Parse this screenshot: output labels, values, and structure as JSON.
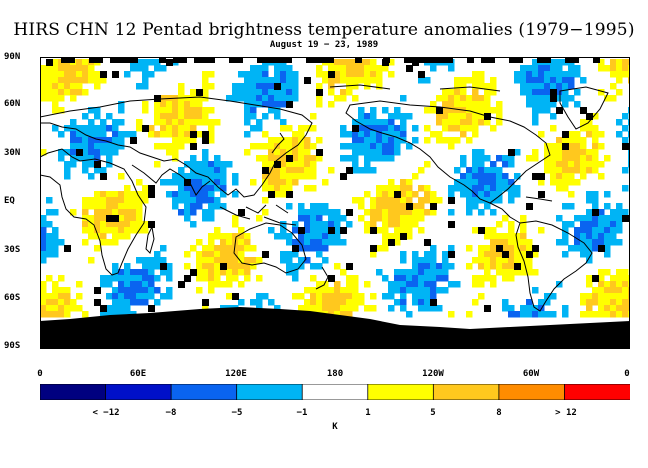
{
  "title": "HIRS CHN 12 Pentad brightness temperature anomalies (1979−1995)",
  "subtitle": "August 19 − 23, 1989",
  "y_axis": {
    "ticks": [
      "90N",
      "60N",
      "30N",
      "EQ",
      "30S",
      "60S",
      "90S"
    ],
    "values": [
      90,
      60,
      30,
      0,
      -30,
      -60,
      -90
    ]
  },
  "x_axis": {
    "ticks": [
      "0",
      "60E",
      "120E",
      "180",
      "120W",
      "60W",
      "0"
    ],
    "values": [
      0,
      60,
      120,
      180,
      240,
      300,
      360
    ]
  },
  "colorbar": {
    "colors": [
      "#000080",
      "#0010c8",
      "#0a64f0",
      "#00b4f5",
      "#ffffff",
      "#ffff00",
      "#ffc81e",
      "#ff8c00",
      "#ff0000"
    ],
    "labels": [
      "< −12",
      "−8",
      "−5",
      "−1",
      "1",
      "5",
      "8",
      "> 12"
    ],
    "unit": "K"
  },
  "colors": {
    "missing": "#000000",
    "coastline": "#000000",
    "background": "#ffffff"
  }
}
